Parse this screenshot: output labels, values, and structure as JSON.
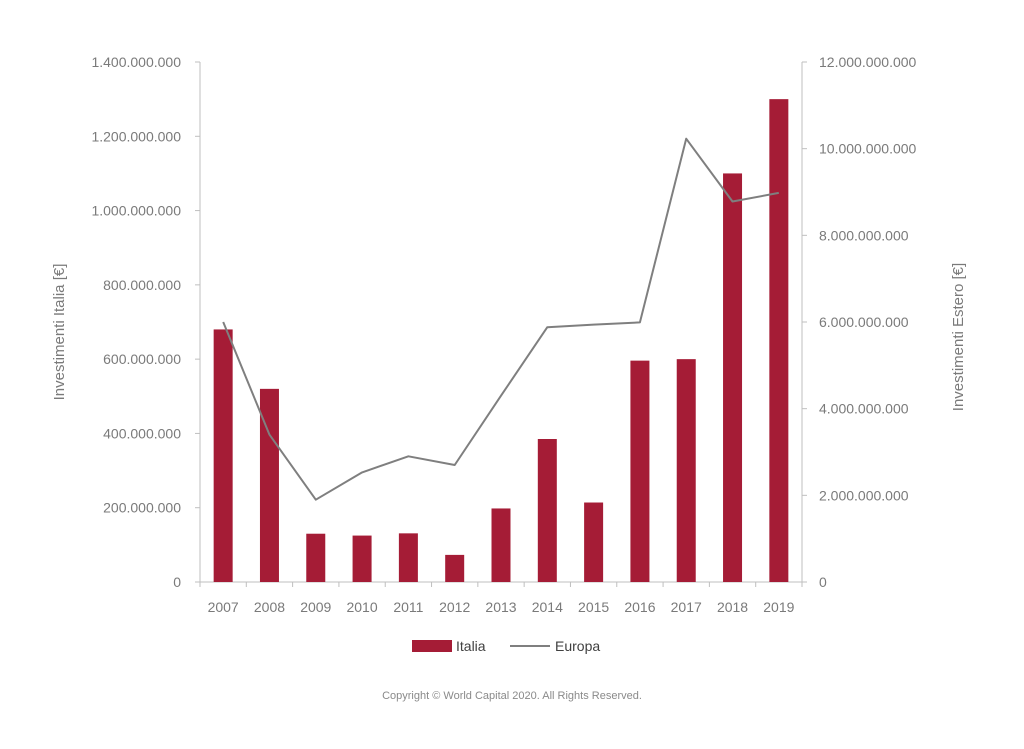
{
  "chart_data": {
    "type": "bar",
    "categories": [
      "2007",
      "2008",
      "2009",
      "2010",
      "2011",
      "2012",
      "2013",
      "2014",
      "2015",
      "2016",
      "2017",
      "2018",
      "2019"
    ],
    "series": [
      {
        "name": "Italia",
        "type": "bar",
        "axis": "left",
        "color": "#a51c36",
        "values": [
          680000000,
          520000000,
          130000000,
          125000000,
          131000000,
          73000000,
          198000000,
          385000000,
          214000000,
          596000000,
          600000000,
          1100000000,
          1300000000
        ]
      },
      {
        "name": "Europa",
        "type": "line",
        "axis": "right",
        "color": "#7f7f7f",
        "values": [
          6000000000,
          3400000000,
          1900000000,
          2530000000,
          2900000000,
          2700000000,
          4300000000,
          5880000000,
          5940000000,
          5990000000,
          10230000000,
          8780000000,
          8980000000
        ]
      }
    ],
    "ylabel": "Investimenti Italia [€]",
    "y2label": "Investimenti Estero [€]",
    "ylim": [
      0,
      1400000000
    ],
    "y2lim": [
      0,
      12000000000
    ],
    "yticks": [
      "0",
      "200.000.000",
      "400.000.000",
      "600.000.000",
      "800.000.000",
      "1.000.000.000",
      "1.200.000.000",
      "1.400.000.000"
    ],
    "y2ticks": [
      "0",
      "2.000.000.000",
      "4.000.000.000",
      "6.000.000.000",
      "8.000.000.000",
      "10.000.000.000",
      "12.000.000.000"
    ],
    "grid": false,
    "legend_position": "bottom"
  },
  "footer": {
    "copyright": "Copyright © World Capital 2020. All Rights Reserved."
  }
}
